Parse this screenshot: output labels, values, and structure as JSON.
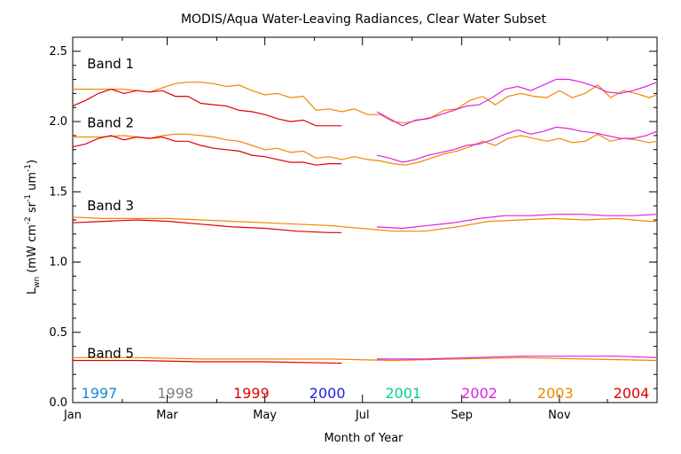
{
  "chart_data": {
    "type": "line",
    "title": "MODIS/Aqua Water-Leaving Radiances, Clear Water Subset",
    "xlabel": "Month of Year",
    "ylabel": "L",
    "ylabel_sub": "wn",
    "ylabel_units": "(mW cm",
    "ylabel_units_rest": " sr",
    "ylabel_units_tail": " um",
    "ylabel_close": ")",
    "ylabel_sup": "-2",
    "ylabel_sup2": "-1",
    "ylabel_sup3": "-1",
    "xlim": [
      0,
      365
    ],
    "ylim": [
      0.0,
      2.6
    ],
    "x_ticks": [
      {
        "x": 0,
        "label": "Jan"
      },
      {
        "x": 59,
        "label": "Mar"
      },
      {
        "x": 120,
        "label": "May"
      },
      {
        "x": 181,
        "label": "Jul"
      },
      {
        "x": 243,
        "label": "Sep"
      },
      {
        "x": 304,
        "label": "Nov"
      }
    ],
    "y_ticks": [
      {
        "y": 0.0,
        "label": "0.0"
      },
      {
        "y": 0.5,
        "label": "0.5"
      },
      {
        "y": 1.0,
        "label": "1.0"
      },
      {
        "y": 1.5,
        "label": "1.5"
      },
      {
        "y": 2.0,
        "label": "2.0"
      },
      {
        "y": 2.5,
        "label": "2.5"
      }
    ],
    "band_labels": [
      {
        "text": "Band 1",
        "x": 9,
        "y": 2.41
      },
      {
        "text": "Band 2",
        "x": 9,
        "y": 1.99
      },
      {
        "text": "Band 3",
        "x": 9,
        "y": 1.4
      },
      {
        "text": "Band 5",
        "x": 9,
        "y": 0.35
      }
    ],
    "legend": [
      {
        "label": "1997",
        "color": "#1a8ad0"
      },
      {
        "label": "1998",
        "color": "#7f7f7f"
      },
      {
        "label": "1999",
        "color": "#e00000"
      },
      {
        "label": "2000",
        "color": "#2020e0"
      },
      {
        "label": "2001",
        "color": "#00d090"
      },
      {
        "label": "2002",
        "color": "#e020e0"
      },
      {
        "label": "2003",
        "color": "#f08800"
      },
      {
        "label": "2004",
        "color": "#e00000"
      }
    ],
    "series": [
      {
        "year": "2003",
        "color": "#f08800",
        "band": "1",
        "x": [
          0,
          16,
          32,
          48,
          56,
          64,
          72,
          80,
          88,
          96,
          104,
          112,
          120,
          128,
          136,
          144,
          152,
          160,
          168,
          176,
          184,
          192,
          200,
          208,
          216,
          224,
          232,
          240,
          248,
          256,
          264,
          272,
          280,
          288,
          296,
          304,
          312,
          320,
          328,
          336,
          344,
          352,
          360,
          365
        ],
        "y": [
          2.23,
          2.23,
          2.23,
          2.21,
          2.24,
          2.27,
          2.28,
          2.28,
          2.27,
          2.25,
          2.26,
          2.22,
          2.19,
          2.2,
          2.17,
          2.18,
          2.08,
          2.09,
          2.07,
          2.09,
          2.05,
          2.05,
          2.0,
          1.99,
          2.01,
          2.03,
          2.08,
          2.09,
          2.15,
          2.18,
          2.12,
          2.18,
          2.2,
          2.18,
          2.17,
          2.22,
          2.17,
          2.2,
          2.26,
          2.17,
          2.22,
          2.2,
          2.17,
          2.19
        ]
      },
      {
        "year": "2003",
        "color": "#f08800",
        "band": "2",
        "x": [
          0,
          16,
          32,
          48,
          56,
          64,
          72,
          80,
          88,
          96,
          104,
          112,
          120,
          128,
          136,
          144,
          152,
          160,
          168,
          176,
          184,
          192,
          200,
          208,
          216,
          224,
          232,
          240,
          248,
          256,
          264,
          272,
          280,
          288,
          296,
          304,
          312,
          320,
          328,
          336,
          344,
          352,
          360,
          365
        ],
        "y": [
          1.89,
          1.89,
          1.9,
          1.88,
          1.9,
          1.91,
          1.91,
          1.9,
          1.89,
          1.87,
          1.86,
          1.83,
          1.8,
          1.81,
          1.78,
          1.79,
          1.74,
          1.75,
          1.73,
          1.75,
          1.73,
          1.72,
          1.7,
          1.69,
          1.71,
          1.74,
          1.77,
          1.79,
          1.82,
          1.86,
          1.83,
          1.88,
          1.9,
          1.88,
          1.86,
          1.88,
          1.85,
          1.86,
          1.91,
          1.86,
          1.88,
          1.87,
          1.85,
          1.86
        ]
      },
      {
        "year": "2003",
        "color": "#f08800",
        "band": "3",
        "x": [
          0,
          20,
          40,
          60,
          80,
          100,
          120,
          140,
          160,
          180,
          200,
          220,
          240,
          260,
          280,
          300,
          320,
          340,
          360,
          365
        ],
        "y": [
          1.32,
          1.31,
          1.31,
          1.31,
          1.3,
          1.29,
          1.28,
          1.27,
          1.26,
          1.24,
          1.22,
          1.22,
          1.25,
          1.29,
          1.3,
          1.31,
          1.3,
          1.31,
          1.29,
          1.29
        ]
      },
      {
        "year": "2003",
        "color": "#f08800",
        "band": "5",
        "x": [
          0,
          40,
          80,
          120,
          160,
          200,
          240,
          280,
          320,
          365
        ],
        "y": [
          0.32,
          0.32,
          0.31,
          0.31,
          0.31,
          0.3,
          0.31,
          0.32,
          0.31,
          0.3
        ]
      },
      {
        "year": "2004",
        "color": "#e00000",
        "band": "1",
        "x": [
          0,
          8,
          16,
          24,
          32,
          40,
          48,
          56,
          64,
          72,
          80,
          88,
          96,
          104,
          112,
          120,
          128,
          136,
          144,
          152,
          160,
          168
        ],
        "y": [
          2.11,
          2.15,
          2.2,
          2.23,
          2.2,
          2.22,
          2.21,
          2.22,
          2.18,
          2.18,
          2.13,
          2.12,
          2.11,
          2.08,
          2.07,
          2.05,
          2.02,
          2.0,
          2.01,
          1.97,
          1.97,
          1.97
        ]
      },
      {
        "year": "2004",
        "color": "#e00000",
        "band": "2",
        "x": [
          0,
          8,
          16,
          24,
          32,
          40,
          48,
          56,
          64,
          72,
          80,
          88,
          96,
          104,
          112,
          120,
          128,
          136,
          144,
          152,
          160,
          168
        ],
        "y": [
          1.82,
          1.84,
          1.88,
          1.9,
          1.87,
          1.89,
          1.88,
          1.89,
          1.86,
          1.86,
          1.83,
          1.81,
          1.8,
          1.79,
          1.76,
          1.75,
          1.73,
          1.71,
          1.71,
          1.69,
          1.7,
          1.7
        ]
      },
      {
        "year": "2004",
        "color": "#e00000",
        "band": "3",
        "x": [
          0,
          20,
          40,
          60,
          80,
          100,
          120,
          140,
          160,
          168
        ],
        "y": [
          1.28,
          1.29,
          1.3,
          1.29,
          1.27,
          1.25,
          1.24,
          1.22,
          1.21,
          1.21
        ]
      },
      {
        "year": "2004",
        "color": "#e00000",
        "band": "5",
        "x": [
          0,
          40,
          80,
          120,
          168
        ],
        "y": [
          0.3,
          0.3,
          0.29,
          0.29,
          0.28
        ]
      },
      {
        "year": "2002",
        "color": "#e020e0",
        "band": "1",
        "x": [
          190,
          198,
          206,
          214,
          222,
          230,
          238,
          246,
          254,
          262,
          270,
          278,
          286,
          294,
          302,
          310,
          318,
          326,
          334,
          342,
          350,
          358,
          365
        ],
        "y": [
          2.07,
          2.02,
          1.97,
          2.01,
          2.02,
          2.05,
          2.08,
          2.11,
          2.12,
          2.17,
          2.23,
          2.25,
          2.22,
          2.26,
          2.3,
          2.3,
          2.28,
          2.25,
          2.21,
          2.2,
          2.22,
          2.25,
          2.28
        ]
      },
      {
        "year": "2002",
        "color": "#e020e0",
        "band": "2",
        "x": [
          190,
          198,
          206,
          214,
          222,
          230,
          238,
          246,
          254,
          262,
          270,
          278,
          286,
          294,
          302,
          310,
          318,
          326,
          334,
          342,
          350,
          358,
          365
        ],
        "y": [
          1.76,
          1.74,
          1.71,
          1.73,
          1.76,
          1.78,
          1.8,
          1.83,
          1.84,
          1.87,
          1.91,
          1.94,
          1.91,
          1.93,
          1.96,
          1.95,
          1.93,
          1.92,
          1.9,
          1.88,
          1.88,
          1.9,
          1.93
        ]
      },
      {
        "year": "2002",
        "color": "#e020e0",
        "band": "3",
        "x": [
          190,
          206,
          222,
          238,
          254,
          270,
          286,
          302,
          318,
          334,
          350,
          365
        ],
        "y": [
          1.25,
          1.24,
          1.26,
          1.28,
          1.31,
          1.33,
          1.33,
          1.34,
          1.34,
          1.33,
          1.33,
          1.34
        ]
      },
      {
        "year": "2002",
        "color": "#e020e0",
        "band": "5",
        "x": [
          190,
          220,
          250,
          280,
          310,
          340,
          365
        ],
        "y": [
          0.31,
          0.31,
          0.32,
          0.33,
          0.33,
          0.33,
          0.32
        ]
      }
    ]
  }
}
